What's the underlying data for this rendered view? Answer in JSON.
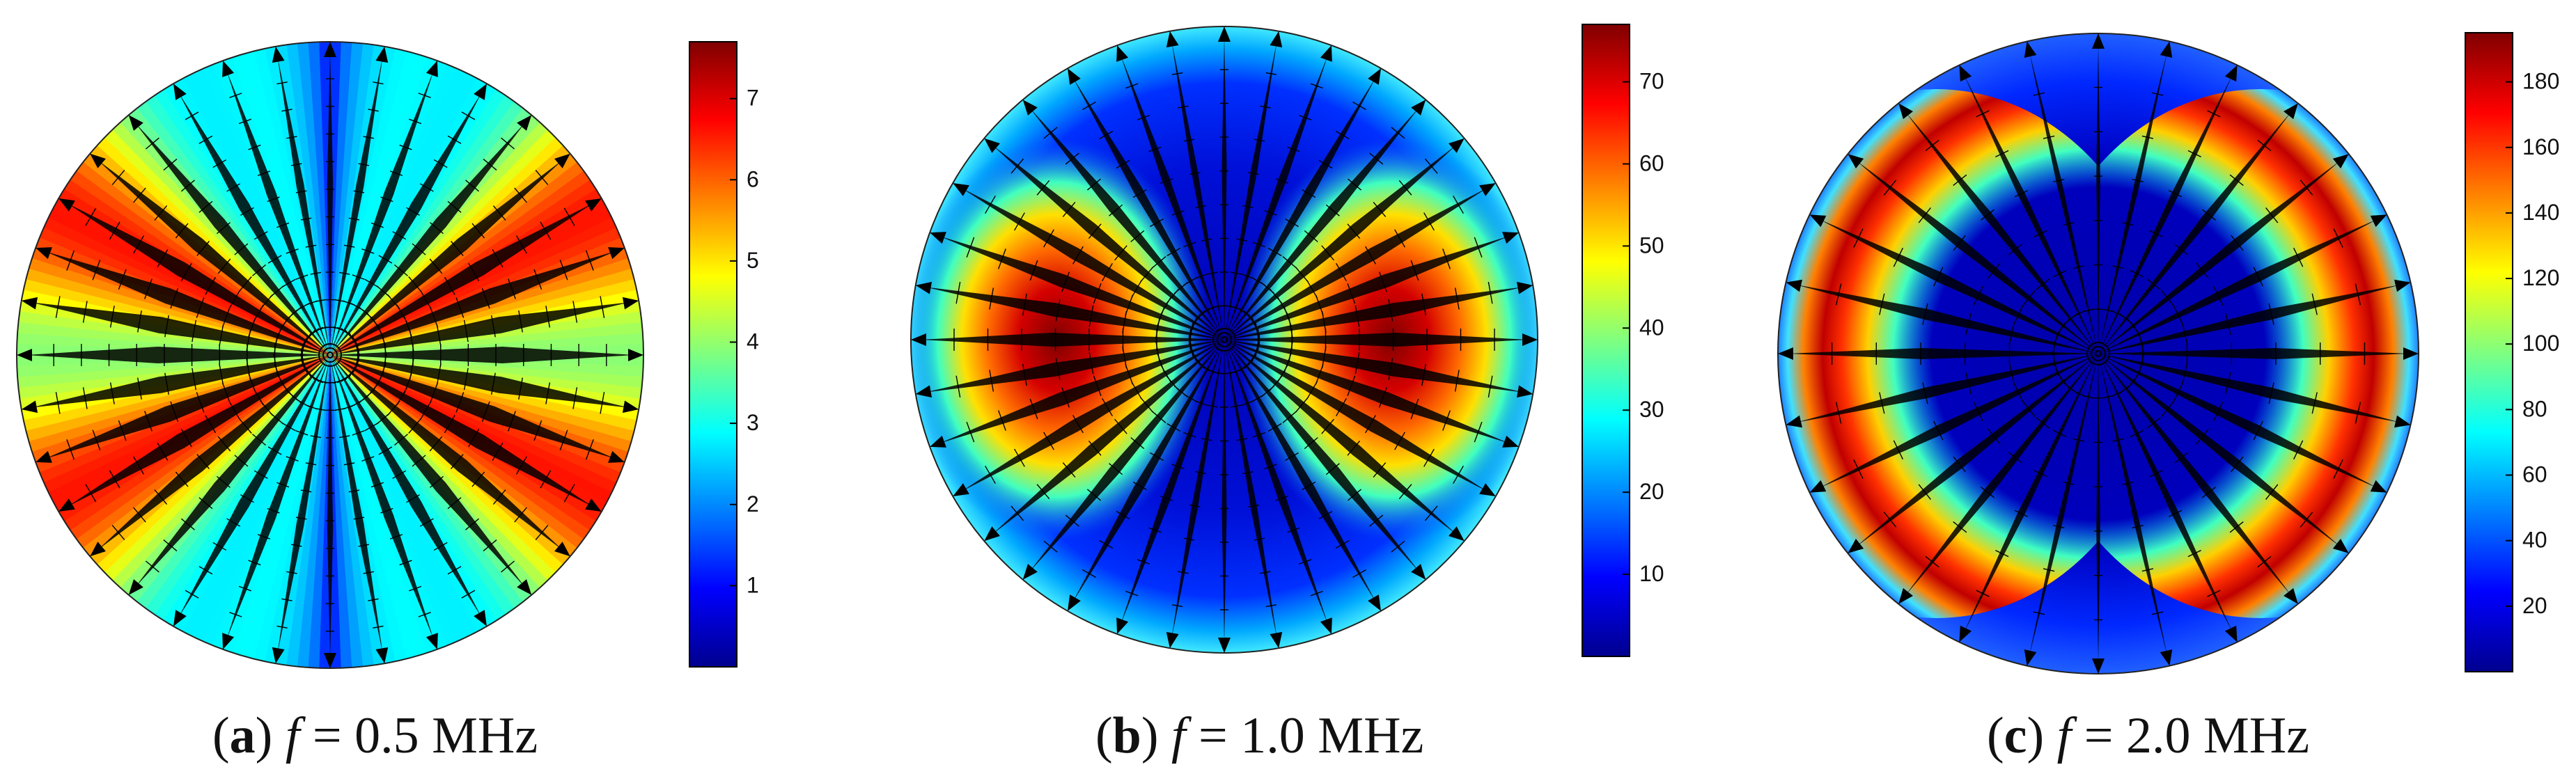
{
  "figure": {
    "panels": [
      {
        "id": "a",
        "caption": {
          "label": "a",
          "var": "f",
          "rest": " = 0.5 MHz"
        },
        "field_pattern": "cosine-azimuthal",
        "colorbar": {
          "min": 0,
          "max": 7.7,
          "ticks": [
            1,
            2,
            3,
            4,
            5,
            6,
            7
          ]
        }
      },
      {
        "id": "b",
        "caption": {
          "label": "b",
          "var": "f",
          "rest": " = 1.0 MHz"
        },
        "field_pattern": "lateral-lobes-single",
        "colorbar": {
          "min": 0,
          "max": 77,
          "ticks": [
            10,
            20,
            30,
            40,
            50,
            60,
            70
          ]
        }
      },
      {
        "id": "c",
        "caption": {
          "label": "c",
          "var": "f",
          "rest": " = 2.0 MHz"
        },
        "field_pattern": "lateral-lobes-ring",
        "colorbar": {
          "min": 0,
          "max": 195,
          "ticks": [
            20,
            40,
            60,
            80,
            100,
            120,
            140,
            160,
            180
          ]
        }
      }
    ],
    "colormap": "jet"
  }
}
